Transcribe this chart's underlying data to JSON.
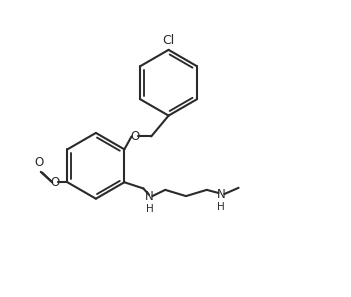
{
  "bg_color": "#ffffff",
  "line_color": "#2a2a2a",
  "line_width": 1.5,
  "text_color": "#2a2a2a",
  "font_size": 8.5,
  "figsize": [
    3.51,
    2.97
  ],
  "dpi": 100,
  "xlim": [
    0,
    10
  ],
  "ylim": [
    0,
    8.5
  ]
}
